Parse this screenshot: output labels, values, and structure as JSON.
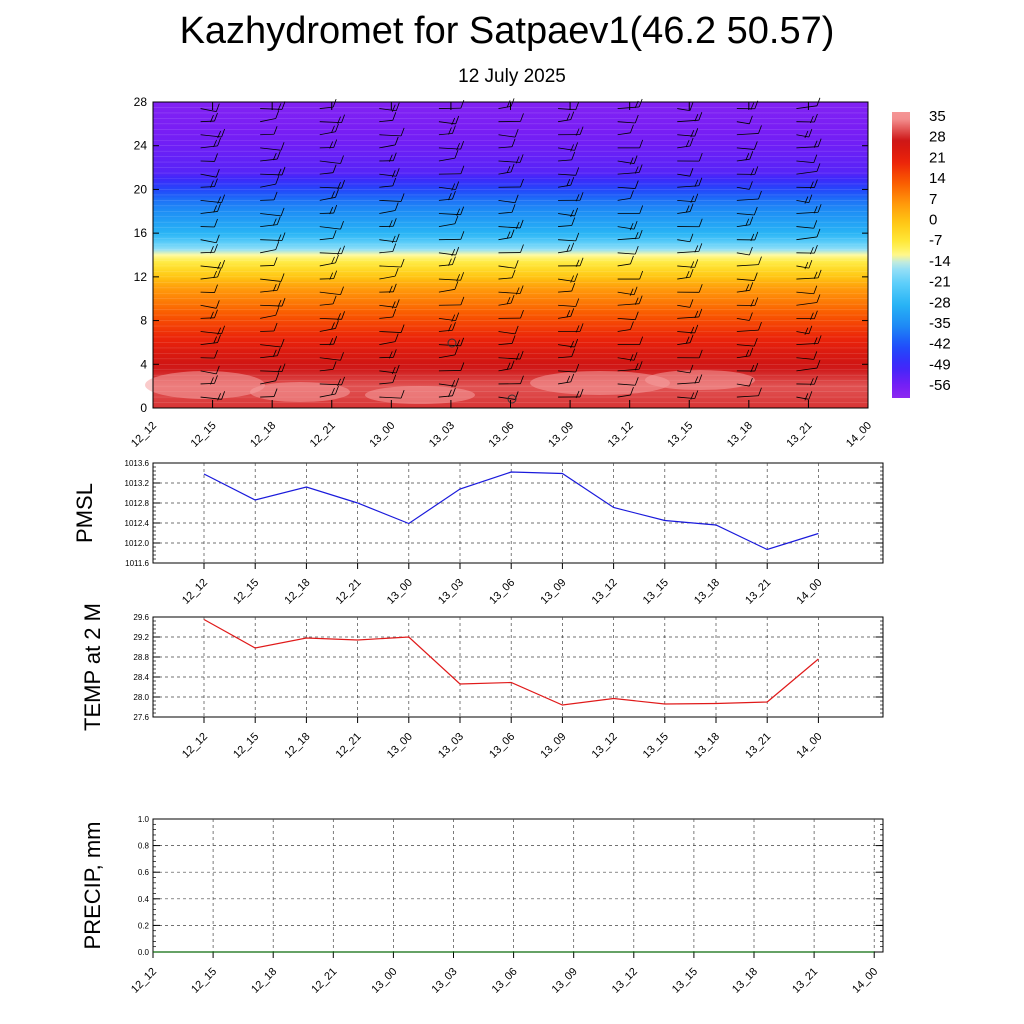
{
  "title": "Kazhydromet for Satpaev1(46.2 50.57)",
  "subtitle": "12 July 2025",
  "colors": {
    "pmsl_line": "#1a1adb",
    "temp_line": "#e01a1a",
    "precip_line": "#0a6a0a",
    "grid": "#444444",
    "axis": "#000000"
  },
  "chart_data": [
    {
      "type": "heatmap",
      "title": "",
      "x_ticks": [
        "12_12",
        "12_15",
        "12_18",
        "12_21",
        "13_00",
        "13_03",
        "13_06",
        "13_09",
        "13_12",
        "13_15",
        "13_18",
        "13_21",
        "14_00"
      ],
      "y_ticks": [
        "0",
        "4",
        "8",
        "12",
        "16",
        "20",
        "24",
        "28"
      ],
      "ylim": [
        0,
        28
      ],
      "colorbar_labels": [
        "35",
        "28",
        "21",
        "14",
        "7",
        "0",
        "-7",
        "-14",
        "-21",
        "-28",
        "-35",
        "-42",
        "-49",
        "-56"
      ],
      "vertical_profile": [
        {
          "level": 0,
          "value": 30
        },
        {
          "level": 2,
          "value": 32
        },
        {
          "level": 5,
          "value": 25
        },
        {
          "level": 8,
          "value": 16
        },
        {
          "level": 11,
          "value": 6
        },
        {
          "level": 13.5,
          "value": -8
        },
        {
          "level": 16,
          "value": -28
        },
        {
          "level": 19,
          "value": -38
        },
        {
          "level": 21.5,
          "value": -52
        },
        {
          "level": 24,
          "value": -55
        },
        {
          "level": 28,
          "value": -58
        }
      ],
      "overlay": "wind barbs"
    },
    {
      "type": "line",
      "ylabel": "PMSL",
      "x": [
        "12_12",
        "12_15",
        "12_18",
        "12_21",
        "13_00",
        "13_03",
        "13_06",
        "13_09",
        "13_12",
        "13_15",
        "13_18",
        "13_21",
        "14_00"
      ],
      "y_ticks": [
        "1011.6",
        "1012.0",
        "1012.4",
        "1012.8",
        "1013.2",
        "1013.6"
      ],
      "ylim": [
        1011.6,
        1013.6
      ],
      "grid": true,
      "series": [
        {
          "values": [
            1013.38,
            1012.86,
            1013.12,
            1012.8,
            1012.39,
            1013.08,
            1013.42,
            1013.39,
            1012.71,
            1012.45,
            1012.36,
            1011.87,
            1012.19
          ]
        }
      ]
    },
    {
      "type": "line",
      "ylabel": "TEMP at 2 M",
      "x": [
        "12_12",
        "12_15",
        "12_18",
        "12_21",
        "13_00",
        "13_03",
        "13_06",
        "13_09",
        "13_12",
        "13_15",
        "13_18",
        "13_21",
        "14_00"
      ],
      "y_ticks": [
        "27.6",
        "28.0",
        "28.4",
        "28.8",
        "29.2",
        "29.6"
      ],
      "ylim": [
        27.6,
        29.6
      ],
      "grid": true,
      "series": [
        {
          "values": [
            29.55,
            28.98,
            29.18,
            29.14,
            29.2,
            28.26,
            28.29,
            27.84,
            27.97,
            27.86,
            27.87,
            27.9,
            28.76
          ]
        }
      ]
    },
    {
      "type": "line",
      "ylabel": "PRECIP, mm",
      "x": [
        "12_12",
        "12_15",
        "12_18",
        "12_21",
        "13_00",
        "13_03",
        "13_06",
        "13_09",
        "13_12",
        "13_15",
        "13_18",
        "13_21",
        "14_00"
      ],
      "y_ticks": [
        "0.0",
        "0.2",
        "0.4",
        "0.6",
        "0.8",
        "1.0"
      ],
      "ylim": [
        0,
        1
      ],
      "grid": true,
      "series": [
        {
          "values": [
            0,
            0,
            0,
            0,
            0,
            0,
            0,
            0,
            0,
            0,
            0,
            0,
            0
          ]
        }
      ]
    }
  ]
}
